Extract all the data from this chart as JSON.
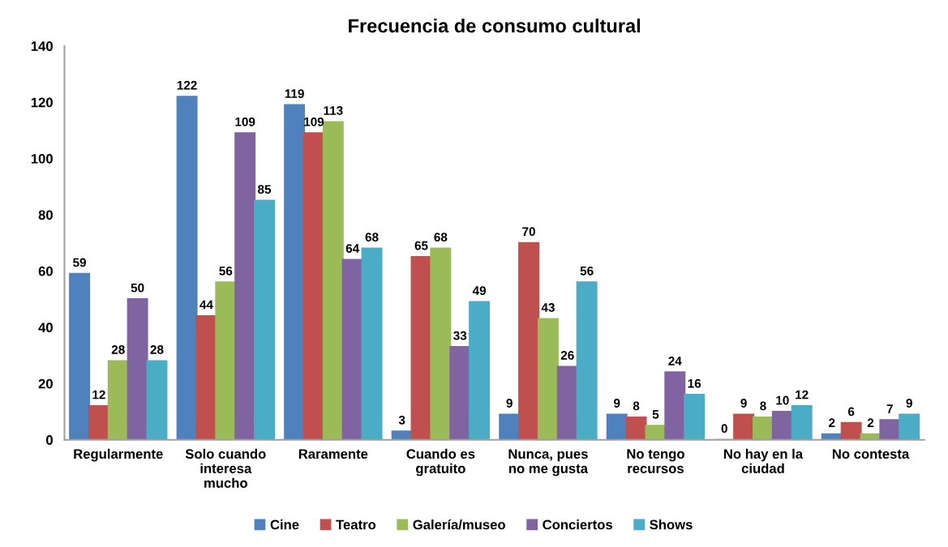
{
  "chart_data": {
    "type": "bar",
    "title": "Frecuencia de consumo cultural",
    "categories": [
      "Regularmente",
      "Solo cuando\ninteresa\nmucho",
      "Raramente",
      "Cuando es\ngratuito",
      "Nunca, pues\nno me gusta",
      "No tengo\nrecursos",
      "No hay en la\nciudad",
      "No contesta"
    ],
    "series": [
      {
        "name": "Cine",
        "color": "#4f81bd",
        "values": [
          59,
          122,
          119,
          3,
          9,
          9,
          0,
          2
        ]
      },
      {
        "name": "Teatro",
        "color": "#c0504d",
        "values": [
          12,
          44,
          109,
          65,
          70,
          8,
          9,
          6
        ]
      },
      {
        "name": "Galería/museo",
        "color": "#9bbb59",
        "values": [
          28,
          56,
          113,
          68,
          43,
          5,
          8,
          2
        ]
      },
      {
        "name": "Conciertos",
        "color": "#8064a2",
        "values": [
          50,
          109,
          64,
          33,
          26,
          24,
          10,
          7
        ]
      },
      {
        "name": "Shows",
        "color": "#4bacc6",
        "values": [
          28,
          85,
          68,
          49,
          56,
          16,
          12,
          9
        ]
      }
    ],
    "ylim": [
      0,
      140
    ],
    "yticks": [
      0,
      20,
      40,
      60,
      80,
      100,
      120,
      140
    ],
    "data_labels": true,
    "legend": "bottom"
  }
}
